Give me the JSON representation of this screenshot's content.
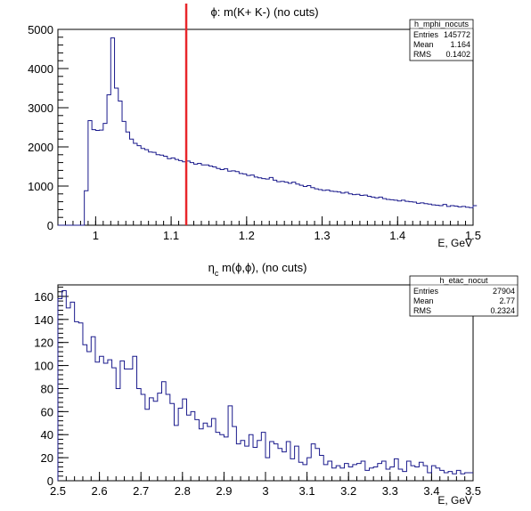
{
  "chart_data": [
    {
      "type": "histogram",
      "title": "ϕ: m(K+ K-) (no cuts)",
      "xlabel": "E, GeV",
      "ylabel": "",
      "xlim": [
        0.95,
        1.5
      ],
      "ylim": [
        0,
        5000
      ],
      "x_ticks": [
        1.0,
        1.1,
        1.2,
        1.3,
        1.4,
        1.5
      ],
      "x_tick_labels": [
        "1",
        "1.1",
        "1.2",
        "1.3",
        "1.4",
        "1.5"
      ],
      "y_ticks": [
        0,
        1000,
        2000,
        3000,
        4000,
        5000
      ],
      "y_tick_labels": [
        "0",
        "1000",
        "2000",
        "3000",
        "4000",
        "5000"
      ],
      "cut_line_x": 1.12,
      "cut_line_color": "#e8262a",
      "line_color": "#1a1a8c",
      "bin_start": 0.95,
      "bin_width": 0.005,
      "values": [
        0,
        0,
        0,
        0,
        0,
        0,
        0,
        880,
        2670,
        2440,
        2420,
        2430,
        2600,
        3330,
        4780,
        3500,
        3170,
        2650,
        2380,
        2200,
        2090,
        2030,
        1960,
        1930,
        1870,
        1860,
        1800,
        1790,
        1760,
        1700,
        1720,
        1680,
        1650,
        1620,
        1640,
        1600,
        1560,
        1580,
        1540,
        1540,
        1510,
        1490,
        1450,
        1420,
        1440,
        1380,
        1390,
        1370,
        1320,
        1310,
        1270,
        1280,
        1230,
        1210,
        1190,
        1180,
        1220,
        1150,
        1110,
        1120,
        1100,
        1070,
        1100,
        1050,
        1020,
        990,
        1010,
        960,
        930,
        910,
        890,
        900,
        870,
        860,
        850,
        820,
        840,
        800,
        780,
        790,
        760,
        770,
        740,
        720,
        700,
        720,
        680,
        660,
        650,
        640,
        620,
        640,
        610,
        600,
        590,
        560,
        570,
        550,
        540,
        520,
        510,
        500,
        530,
        480,
        500,
        490,
        470,
        480,
        460,
        450,
        500
      ],
      "stats": {
        "name": "h_mphi_nocuts",
        "rows": [
          {
            "label": "Entries",
            "value": "145772"
          },
          {
            "label": "Mean",
            "value": "1.164"
          },
          {
            "label": "RMS",
            "value": "0.1402"
          }
        ]
      }
    },
    {
      "type": "histogram",
      "title_main": "η",
      "title_sub": "c",
      "title_rest": " m(ϕ,ϕ), (no cuts)",
      "xlabel": "E, GeV",
      "ylabel": "",
      "xlim": [
        2.5,
        3.5
      ],
      "ylim": [
        0,
        170
      ],
      "x_ticks": [
        2.5,
        2.6,
        2.7,
        2.8,
        2.9,
        3.0,
        3.1,
        3.2,
        3.3,
        3.4,
        3.5
      ],
      "x_tick_labels": [
        "2.5",
        "2.6",
        "2.7",
        "2.8",
        "2.9",
        "3",
        "3.1",
        "3.2",
        "3.3",
        "3.4",
        "3.5"
      ],
      "y_ticks": [
        0,
        20,
        40,
        60,
        80,
        100,
        120,
        140,
        160
      ],
      "y_tick_labels": [
        "0",
        "20",
        "40",
        "60",
        "80",
        "100",
        "120",
        "140",
        "160"
      ],
      "line_color": "#1a1a8c",
      "bin_start": 2.5,
      "bin_width": 0.01,
      "values": [
        158,
        165,
        150,
        155,
        138,
        137,
        118,
        112,
        125,
        103,
        108,
        102,
        105,
        98,
        80,
        104,
        97,
        97,
        108,
        80,
        75,
        62,
        72,
        69,
        76,
        86,
        75,
        67,
        48,
        63,
        71,
        57,
        60,
        53,
        45,
        50,
        47,
        54,
        42,
        40,
        38,
        65,
        47,
        32,
        35,
        30,
        40,
        29,
        35,
        42,
        20,
        34,
        32,
        28,
        25,
        34,
        19,
        30,
        16,
        14,
        20,
        32,
        28,
        22,
        14,
        17,
        11,
        13,
        11,
        15,
        12,
        14,
        15,
        17,
        9,
        11,
        12,
        15,
        17,
        10,
        12,
        19,
        10,
        8,
        17,
        13,
        12,
        16,
        13,
        7,
        13,
        11,
        9,
        7,
        8,
        6,
        9,
        6,
        7,
        7
      ],
      "stats": {
        "name": "h_etac_nocut",
        "rows": [
          {
            "label": "Entries",
            "value": "27904"
          },
          {
            "label": "Mean",
            "value": "2.77"
          },
          {
            "label": "RMS",
            "value": "0.2324"
          }
        ]
      }
    }
  ]
}
